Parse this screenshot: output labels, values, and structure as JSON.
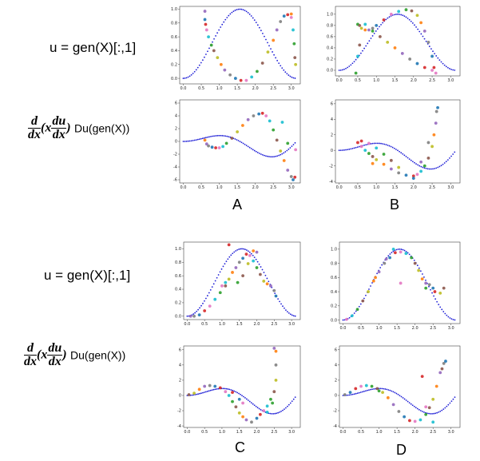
{
  "labels": {
    "u_label": "u = gen(X)[:,1]",
    "deriv": {
      "d_num": "d",
      "d_den": "dx",
      "x": "(x",
      "du_num": "du",
      "du_den": "dx",
      "close": ")",
      "tail": "Du(gen(X))"
    },
    "panels": [
      "A",
      "B",
      "C",
      "D"
    ]
  },
  "colors": {
    "reference": "#1f1fd6",
    "scatter": [
      "#1f77b4",
      "#ff7f0e",
      "#2ca02c",
      "#d62728",
      "#9467bd",
      "#8c564b",
      "#e377c2",
      "#7f7f7f",
      "#bcbd22",
      "#17becf"
    ]
  },
  "chart_data": [
    {
      "panel": "A",
      "row": "u",
      "type": "scatter",
      "title": "",
      "xticks": [
        "0.0",
        "0.5",
        "1.0",
        "1.5",
        "2.0",
        "2.5",
        "3.0"
      ],
      "xlim": [
        -0.1,
        3.25
      ],
      "yticks": [
        "0.0",
        "0.2",
        "0.4",
        "0.6",
        "0.8",
        "1.0"
      ],
      "ylim": [
        -0.08,
        1.04
      ],
      "reference": "sin^2",
      "points": [
        [
          0.6,
          0.85
        ],
        [
          0.62,
          0.78
        ],
        [
          0.65,
          0.7
        ],
        [
          0.7,
          0.6
        ],
        [
          0.78,
          0.48
        ],
        [
          0.85,
          0.4
        ],
        [
          0.95,
          0.3
        ],
        [
          1.05,
          0.2
        ],
        [
          1.15,
          0.12
        ],
        [
          1.3,
          0.05
        ],
        [
          1.45,
          0.0
        ],
        [
          1.6,
          -0.03
        ],
        [
          1.75,
          -0.03
        ],
        [
          1.9,
          0.02
        ],
        [
          2.05,
          0.1
        ],
        [
          2.2,
          0.22
        ],
        [
          2.35,
          0.38
        ],
        [
          2.5,
          0.55
        ],
        [
          2.6,
          0.7
        ],
        [
          2.7,
          0.82
        ],
        [
          2.8,
          0.9
        ],
        [
          2.9,
          0.92
        ],
        [
          3.0,
          0.88
        ],
        [
          3.05,
          0.7
        ],
        [
          3.08,
          0.5
        ],
        [
          3.1,
          0.3
        ],
        [
          3.12,
          0.2
        ],
        [
          3.0,
          0.93
        ],
        [
          0.6,
          0.97
        ]
      ]
    },
    {
      "panel": "A",
      "row": "d",
      "type": "scatter",
      "xticks": [
        "0.0",
        "0.5",
        "1.0",
        "1.5",
        "2.0",
        "2.5",
        "3.0"
      ],
      "xlim": [
        -0.1,
        3.25
      ],
      "yticks": [
        "-6",
        "-4",
        "-2",
        "0",
        "2",
        "4",
        "6"
      ],
      "ylim": [
        -6.5,
        6.5
      ],
      "reference": "x*sin(2x)",
      "points": [
        [
          0.6,
          0.2
        ],
        [
          0.65,
          -0.4
        ],
        [
          0.7,
          -0.7
        ],
        [
          0.8,
          -0.9
        ],
        [
          0.9,
          -1.0
        ],
        [
          1.0,
          -1.0
        ],
        [
          1.1,
          -0.8
        ],
        [
          1.2,
          -0.3
        ],
        [
          1.35,
          0.5
        ],
        [
          1.5,
          1.5
        ],
        [
          1.65,
          2.5
        ],
        [
          1.8,
          3.4
        ],
        [
          1.95,
          4.0
        ],
        [
          2.1,
          4.3
        ],
        [
          2.2,
          4.4
        ],
        [
          2.3,
          4.0
        ],
        [
          2.4,
          3.2
        ],
        [
          2.5,
          1.8
        ],
        [
          2.6,
          0.2
        ],
        [
          2.7,
          -1.5
        ],
        [
          2.8,
          -3.0
        ],
        [
          2.9,
          -4.5
        ],
        [
          3.0,
          -5.5
        ],
        [
          3.05,
          -6.0
        ],
        [
          3.1,
          -5.6
        ],
        [
          3.12,
          -1.3
        ],
        [
          2.75,
          3.0
        ],
        [
          2.9,
          -0.3
        ]
      ]
    },
    {
      "panel": "B",
      "row": "u",
      "type": "scatter",
      "xticks": [
        "0.0",
        "0.5",
        "1.0",
        "1.5",
        "2.0",
        "2.5",
        "3.0"
      ],
      "xlim": [
        -0.1,
        3.25
      ],
      "yticks": [
        "0.0",
        "0.2",
        "0.4",
        "0.6",
        "0.8",
        "1.0"
      ],
      "ylim": [
        -0.1,
        1.14
      ],
      "reference": "sin^2",
      "points": [
        [
          0.5,
          0.82
        ],
        [
          0.55,
          0.8
        ],
        [
          0.6,
          0.75
        ],
        [
          0.7,
          0.72
        ],
        [
          0.8,
          0.72
        ],
        [
          0.9,
          0.75
        ],
        [
          1.0,
          0.8
        ],
        [
          1.2,
          0.9
        ],
        [
          1.4,
          1.0
        ],
        [
          1.6,
          1.05
        ],
        [
          1.8,
          1.08
        ],
        [
          1.95,
          1.06
        ],
        [
          2.1,
          0.98
        ],
        [
          2.2,
          0.85
        ],
        [
          2.3,
          0.7
        ],
        [
          2.4,
          0.5
        ],
        [
          2.5,
          0.25
        ],
        [
          2.55,
          0.05
        ],
        [
          2.6,
          -0.05
        ],
        [
          0.7,
          0.82
        ],
        [
          0.9,
          0.7
        ],
        [
          1.1,
          0.6
        ],
        [
          1.3,
          0.5
        ],
        [
          1.5,
          0.4
        ],
        [
          1.7,
          0.3
        ],
        [
          1.9,
          0.2
        ],
        [
          2.1,
          0.12
        ],
        [
          2.3,
          0.05
        ],
        [
          2.5,
          0.0
        ],
        [
          0.5,
          0.25
        ],
        [
          0.45,
          -0.05
        ],
        [
          0.55,
          0.45
        ]
      ]
    },
    {
      "panel": "B",
      "row": "d",
      "type": "scatter",
      "xticks": [
        "0.0",
        "0.5",
        "1.0",
        "1.5",
        "2.0",
        "2.5",
        "3.0"
      ],
      "xlim": [
        -0.1,
        3.25
      ],
      "yticks": [
        "-4",
        "-2",
        "0",
        "2",
        "4",
        "6"
      ],
      "ylim": [
        -4.2,
        6.5
      ],
      "reference": "x*sin(2x)",
      "points": [
        [
          0.5,
          1.0
        ],
        [
          0.6,
          0.5
        ],
        [
          0.7,
          0.0
        ],
        [
          0.8,
          -0.4
        ],
        [
          0.9,
          -0.8
        ],
        [
          1.0,
          -1.2
        ],
        [
          1.2,
          -1.8
        ],
        [
          1.4,
          -2.4
        ],
        [
          1.6,
          -2.9
        ],
        [
          1.8,
          -3.2
        ],
        [
          2.0,
          -3.3
        ],
        [
          2.1,
          -3.1
        ],
        [
          2.2,
          -2.7
        ],
        [
          2.3,
          -2.0
        ],
        [
          2.4,
          -1.0
        ],
        [
          2.5,
          0.5
        ],
        [
          2.55,
          2.0
        ],
        [
          2.6,
          3.5
        ],
        [
          2.62,
          5.0
        ],
        [
          2.65,
          5.5
        ],
        [
          0.6,
          1.2
        ],
        [
          0.8,
          0.9
        ],
        [
          1.0,
          0.3
        ],
        [
          1.2,
          -0.5
        ],
        [
          1.4,
          -1.3
        ],
        [
          1.6,
          -2.2
        ],
        [
          0.9,
          -1.7
        ],
        [
          2.2,
          -1.5
        ],
        [
          2.4,
          1.0
        ],
        [
          2.0,
          -3.6
        ]
      ]
    },
    {
      "panel": "C",
      "row": "u",
      "type": "scatter",
      "xticks": [
        "0.0",
        "0.5",
        "1.0",
        "1.5",
        "2.0",
        "2.5",
        "3.0"
      ],
      "xlim": [
        -0.1,
        3.25
      ],
      "yticks": [
        "0.0",
        "0.2",
        "0.4",
        "0.6",
        "0.8",
        "1.0"
      ],
      "ylim": [
        -0.05,
        1.1
      ],
      "reference": "sin^2",
      "points": [
        [
          0.1,
          0.0
        ],
        [
          0.2,
          0.0
        ],
        [
          0.35,
          0.02
        ],
        [
          0.5,
          0.08
        ],
        [
          0.65,
          0.15
        ],
        [
          0.8,
          0.25
        ],
        [
          0.95,
          0.35
        ],
        [
          1.1,
          0.45
        ],
        [
          1.2,
          0.55
        ],
        [
          1.3,
          0.65
        ],
        [
          1.4,
          0.72
        ],
        [
          1.5,
          0.8
        ],
        [
          1.6,
          0.86
        ],
        [
          1.7,
          0.92
        ],
        [
          1.8,
          0.9
        ],
        [
          1.9,
          0.82
        ],
        [
          2.0,
          0.72
        ],
        [
          2.1,
          0.62
        ],
        [
          2.2,
          0.52
        ],
        [
          2.3,
          0.48
        ],
        [
          2.4,
          0.45
        ],
        [
          2.5,
          0.38
        ],
        [
          2.55,
          0.3
        ],
        [
          1.2,
          1.06
        ],
        [
          1.0,
          0.45
        ],
        [
          1.1,
          0.5
        ],
        [
          1.45,
          0.5
        ],
        [
          1.6,
          0.6
        ],
        [
          1.75,
          0.78
        ],
        [
          1.9,
          0.97
        ],
        [
          2.0,
          0.95
        ]
      ]
    },
    {
      "panel": "C",
      "row": "d",
      "type": "scatter",
      "xticks": [
        "0.0",
        "0.5",
        "1.0",
        "1.5",
        "2.0",
        "2.5",
        "3.0"
      ],
      "xlim": [
        -0.1,
        3.25
      ],
      "yticks": [
        "-4",
        "-2",
        "0",
        "2",
        "4",
        "6"
      ],
      "ylim": [
        -4.2,
        6.5
      ],
      "reference": "x*sin(2x)",
      "points": [
        [
          0.05,
          0.1
        ],
        [
          0.2,
          0.3
        ],
        [
          0.35,
          0.8
        ],
        [
          0.5,
          1.2
        ],
        [
          0.65,
          1.3
        ],
        [
          0.8,
          1.2
        ],
        [
          0.95,
          1.0
        ],
        [
          1.1,
          0.5
        ],
        [
          1.2,
          0.0
        ],
        [
          1.3,
          -0.8
        ],
        [
          1.4,
          -1.5
        ],
        [
          1.5,
          -2.3
        ],
        [
          1.6,
          -2.8
        ],
        [
          1.7,
          -3.2
        ],
        [
          1.85,
          -3.5
        ],
        [
          2.0,
          -3.0
        ],
        [
          2.1,
          -2.5
        ],
        [
          2.2,
          -2.0
        ],
        [
          2.3,
          -1.4
        ],
        [
          2.4,
          -0.5
        ],
        [
          2.5,
          0.5
        ],
        [
          2.55,
          2.0
        ],
        [
          2.55,
          5.8
        ],
        [
          2.5,
          6.2
        ],
        [
          2.55,
          4.0
        ],
        [
          1.5,
          -0.5
        ],
        [
          1.3,
          0.4
        ],
        [
          1.6,
          -1.0
        ],
        [
          2.3,
          -2.2
        ],
        [
          2.45,
          -1.0
        ]
      ]
    },
    {
      "panel": "D",
      "row": "u",
      "type": "scatter",
      "xticks": [
        "0.0",
        "0.5",
        "1.0",
        "1.5",
        "2.0",
        "2.5",
        "3.0"
      ],
      "xlim": [
        -0.1,
        3.25
      ],
      "yticks": [
        "0.0",
        "0.2",
        "0.4",
        "0.6",
        "0.8",
        "1.0"
      ],
      "ylim": [
        -0.05,
        1.1
      ],
      "reference": "sin^2",
      "points": [
        [
          0.1,
          0.01
        ],
        [
          0.25,
          0.06
        ],
        [
          0.4,
          0.15
        ],
        [
          0.55,
          0.27
        ],
        [
          0.7,
          0.4
        ],
        [
          0.85,
          0.55
        ],
        [
          1.0,
          0.68
        ],
        [
          1.15,
          0.8
        ],
        [
          1.3,
          0.88
        ],
        [
          1.45,
          0.95
        ],
        [
          1.6,
          0.96
        ],
        [
          1.75,
          0.94
        ],
        [
          1.9,
          0.88
        ],
        [
          2.0,
          0.8
        ],
        [
          2.1,
          0.7
        ],
        [
          2.2,
          0.58
        ],
        [
          2.3,
          0.52
        ],
        [
          2.4,
          0.5
        ],
        [
          2.5,
          0.45
        ],
        [
          2.55,
          0.4
        ],
        [
          1.6,
          0.52
        ],
        [
          1.4,
          1.0
        ],
        [
          2.3,
          0.45
        ],
        [
          2.8,
          0.45
        ],
        [
          2.7,
          0.38
        ],
        [
          0.9,
          0.6
        ],
        [
          1.2,
          0.86
        ]
      ]
    },
    {
      "panel": "D",
      "row": "d",
      "type": "scatter",
      "xticks": [
        "0.0",
        "0.5",
        "1.0",
        "1.5",
        "2.0",
        "2.5",
        "3.0"
      ],
      "xlim": [
        -0.1,
        3.25
      ],
      "yticks": [
        "-4",
        "-2",
        "0",
        "2",
        "4",
        "6"
      ],
      "ylim": [
        -4.2,
        6.5
      ],
      "reference": "x*sin(2x)",
      "points": [
        [
          0.05,
          0.1
        ],
        [
          0.2,
          0.4
        ],
        [
          0.35,
          0.9
        ],
        [
          0.5,
          1.2
        ],
        [
          0.65,
          1.3
        ],
        [
          0.8,
          1.2
        ],
        [
          0.95,
          0.9
        ],
        [
          1.1,
          0.4
        ],
        [
          1.25,
          -0.3
        ],
        [
          1.4,
          -1.2
        ],
        [
          1.55,
          -2.1
        ],
        [
          1.7,
          -2.8
        ],
        [
          1.85,
          -3.3
        ],
        [
          2.0,
          -3.4
        ],
        [
          2.15,
          -3.2
        ],
        [
          2.3,
          -2.5
        ],
        [
          2.4,
          -1.6
        ],
        [
          2.5,
          -0.5
        ],
        [
          2.6,
          1.2
        ],
        [
          2.7,
          3.0
        ],
        [
          2.8,
          4.2
        ],
        [
          2.85,
          4.5
        ],
        [
          2.2,
          2.5
        ],
        [
          2.3,
          -1.5
        ],
        [
          2.5,
          -3.5
        ],
        [
          1.0,
          0.6
        ],
        [
          2.75,
          3.5
        ]
      ]
    }
  ]
}
